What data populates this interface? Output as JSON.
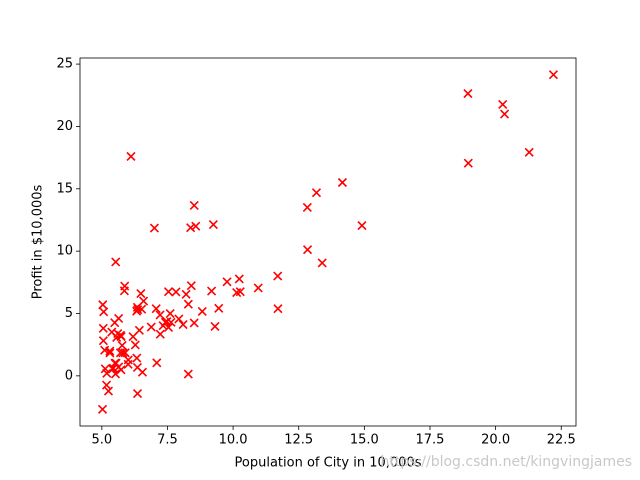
{
  "chart_data": {
    "type": "scatter",
    "xlabel": "Population of City in 10,000s",
    "ylabel": "Profit in $10,000s",
    "watermark": "https://blog.csdn.net/kingvingjames",
    "color": "#ff0000",
    "marker": "x",
    "xlim": [
      4.168,
      23.062
    ],
    "ylim": [
      -4.022,
      25.489
    ],
    "xticks": [
      {
        "value": 5,
        "label": "5.0"
      },
      7.5,
      {
        "value": 10,
        "label": "10.0"
      },
      12.5,
      {
        "value": 15,
        "label": "15.0"
      },
      17.5,
      {
        "value": 20,
        "label": "20.0"
      },
      22.5
    ],
    "yticks": [
      0,
      5,
      10,
      15,
      20,
      25
    ],
    "x": [
      6.1101,
      5.5277,
      8.5186,
      7.0032,
      5.8598,
      8.3829,
      7.4764,
      8.5781,
      6.4862,
      5.0546,
      5.7107,
      14.164,
      5.734,
      8.4084,
      5.6407,
      5.3794,
      6.3654,
      5.1301,
      6.4296,
      7.0708,
      6.1891,
      20.27,
      5.4901,
      6.3261,
      5.5649,
      18.945,
      12.828,
      10.957,
      13.176,
      22.203,
      5.2524,
      6.5894,
      9.2482,
      5.8918,
      8.2111,
      7.9334,
      8.0959,
      5.6063,
      12.836,
      6.3534,
      5.4069,
      6.8825,
      11.708,
      5.7737,
      7.8247,
      7.0931,
      5.0702,
      5.8014,
      11.7,
      5.5416,
      7.5402,
      5.3077,
      7.4239,
      7.6031,
      6.3328,
      6.3589,
      6.2742,
      5.6397,
      9.3102,
      9.4536,
      8.8254,
      5.1793,
      21.279,
      14.908,
      18.959,
      7.2182,
      8.2951,
      10.236,
      5.4994,
      20.341,
      10.136,
      7.3345,
      6.0062,
      7.2259,
      5.0269,
      6.5479,
      7.5386,
      5.0365,
      10.274,
      5.1077,
      5.7292,
      5.1884,
      6.3557,
      9.7687,
      6.5159,
      8.5172,
      9.1802,
      6.002,
      5.5204,
      5.0594,
      5.7077,
      7.6366,
      5.8707,
      5.3054,
      8.2934,
      13.394,
      5.4369
    ],
    "y": [
      17.592,
      9.1302,
      13.662,
      11.854,
      6.8233,
      11.886,
      4.3483,
      12,
      6.5987,
      3.8166,
      3.2522,
      15.505,
      3.1551,
      7.2258,
      0.71618,
      3.5129,
      5.3048,
      0.56077,
      3.6518,
      5.3893,
      3.1386,
      21.767,
      4.263,
      5.1875,
      3.0825,
      22.638,
      13.501,
      7.0467,
      14.692,
      24.147,
      -1.22,
      5.9966,
      12.134,
      1.8495,
      6.5426,
      4.5623,
      4.1164,
      3.3928,
      10.117,
      5.4974,
      0.55657,
      3.9115,
      5.3854,
      2.4406,
      6.7318,
      1.0463,
      5.1337,
      1.844,
      8.0043,
      1.0179,
      6.7504,
      1.8396,
      4.2885,
      4.9981,
      1.4233,
      -1.4211,
      2.4756,
      4.6042,
      3.9624,
      5.4141,
      5.1694,
      -0.74279,
      17.929,
      12.054,
      17.054,
      4.8852,
      5.7442,
      7.7754,
      1.0173,
      20.992,
      6.6799,
      4.0259,
      1.2784,
      3.3411,
      -2.6807,
      0.29678,
      3.8845,
      5.7014,
      6.7526,
      2.0576,
      0.47953,
      0.20421,
      0.67861,
      7.5435,
      5.3436,
      4.2415,
      6.7981,
      0.92695,
      0.152,
      2.8214,
      1.8451,
      4.2959,
      7.2029,
      1.9869,
      0.14454,
      9.0551,
      0.61705
    ]
  }
}
